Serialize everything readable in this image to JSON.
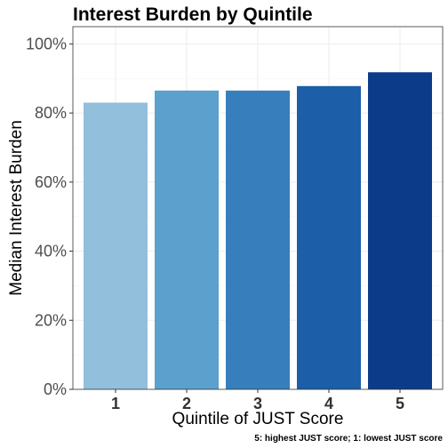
{
  "chart_data": {
    "type": "bar",
    "title": "Interest Burden by Quintile",
    "xlabel": "Quintile of JUST Score",
    "ylabel": "Median Interest Burden",
    "caption": "5: highest JUST score; 1: lowest JUST score",
    "categories": [
      "1",
      "2",
      "3",
      "4",
      "5"
    ],
    "values": [
      0.83,
      0.865,
      0.865,
      0.878,
      0.918
    ],
    "colors": [
      "#92bfdb",
      "#5ca0cd",
      "#377fbc",
      "#1c5ea8",
      "#0c3b89"
    ],
    "ylim": [
      0,
      1.05
    ],
    "yticks": [
      0,
      0.2,
      0.4,
      0.6,
      0.8,
      1.0
    ],
    "ytick_labels": [
      "0%",
      "20%",
      "40%",
      "60%",
      "80%",
      "100%"
    ],
    "grid": true,
    "legend": "none"
  }
}
